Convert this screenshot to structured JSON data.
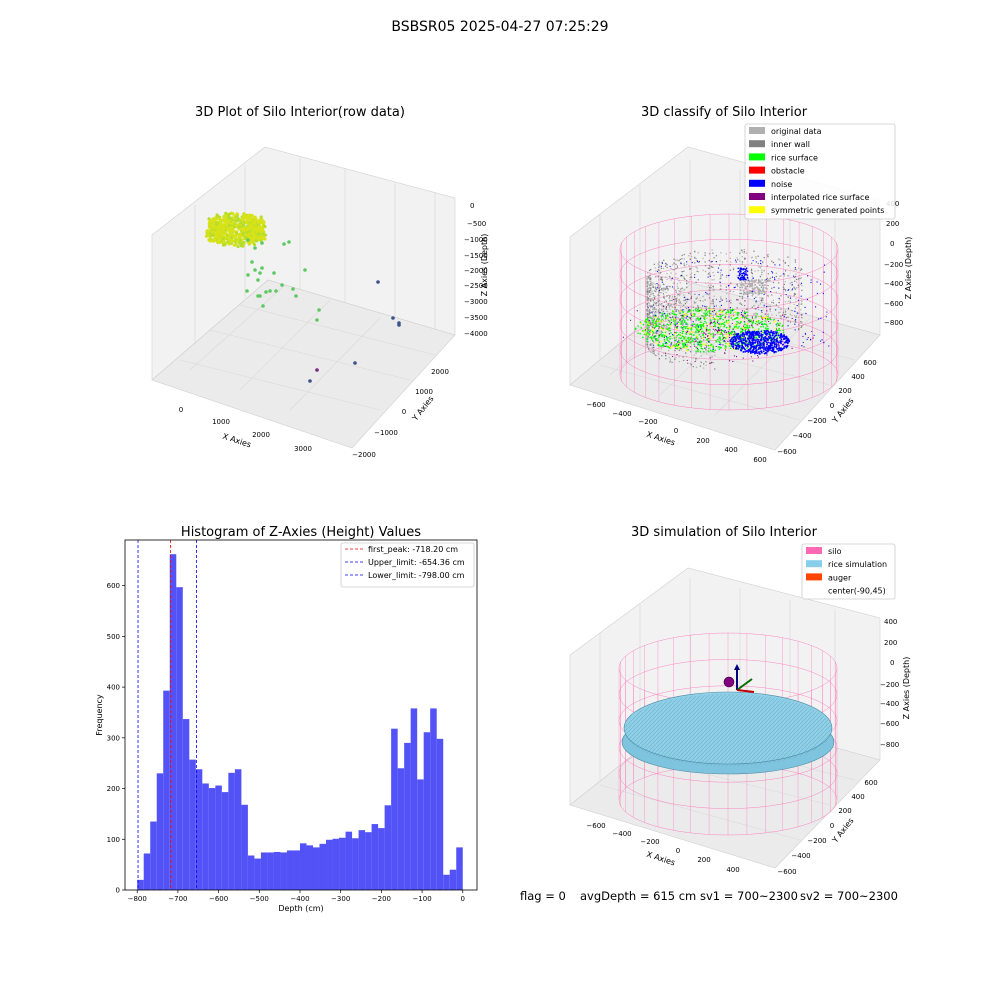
{
  "suptitle": "BSBSR05 2025-04-27 07:25:29",
  "footer": {
    "flag": "flag = 0",
    "avg": "avgDepth = 615 cm",
    "sv1": "sv1 = 700~2300",
    "sv2": "sv2 = 700~2300"
  },
  "chart_data": [
    {
      "type": "scatter",
      "panel": "3d-raw",
      "title": "3D Plot of Silo Interior(row data)",
      "xlabel": "X Axies",
      "ylabel": "Y Axies",
      "zlabel": "Z Axies (Depth)",
      "xticks": [
        "0",
        "1000",
        "2000",
        "3000"
      ],
      "yticks": [
        "2000",
        "1000",
        "0",
        "−1000",
        "−2000"
      ],
      "zticks": [
        "0",
        "−500",
        "−1000",
        "−1500",
        "−2000",
        "−2500",
        "−3000",
        "−3500",
        "−4000"
      ],
      "colors": {
        "cluster": "#d8e219",
        "scatter": "#5ec962",
        "outlier": "#3b528b",
        "accent": "#7b2882"
      }
    },
    {
      "type": "scatter",
      "panel": "3d-classify",
      "title": "3D classify of Silo Interior",
      "xlabel": "X Axies",
      "ylabel": "Y Axies",
      "zlabel": "Z Axies (Depth)",
      "xticks": [
        "−600",
        "−400",
        "−200",
        "0",
        "200",
        "400",
        "600"
      ],
      "yticks": [
        "600",
        "400",
        "200",
        "0",
        "−200",
        "−400",
        "−600"
      ],
      "zticks": [
        "200",
        "0",
        "−200",
        "−400",
        "−600",
        "−800"
      ],
      "zticks_top": "400",
      "legend": [
        {
          "label": "original data",
          "color": "#b0b0b0"
        },
        {
          "label": "inner wall",
          "color": "#808080"
        },
        {
          "label": "rice surface",
          "color": "#00ff00"
        },
        {
          "label": "obstacle",
          "color": "#ff0000"
        },
        {
          "label": "noise",
          "color": "#0000ff"
        },
        {
          "label": "interpolated rice surface",
          "color": "#800080"
        },
        {
          "label": "symmetric generated points",
          "color": "#ffff00"
        }
      ]
    },
    {
      "type": "bar",
      "panel": "histogram",
      "title": "Histogram of Z-Axies (Height) Values",
      "xlabel": "Depth (cm)",
      "ylabel": "Frequency",
      "xlim": [
        -830,
        35
      ],
      "ylim": [
        0,
        690
      ],
      "xticks": [
        -800,
        -700,
        -600,
        -500,
        -400,
        -300,
        -200,
        -100,
        0
      ],
      "yticks": [
        0,
        100,
        200,
        300,
        400,
        500,
        600
      ],
      "bin_start": -800,
      "bin_width": 16,
      "values": [
        20,
        72,
        135,
        230,
        393,
        662,
        597,
        337,
        257,
        238,
        210,
        201,
        206,
        193,
        231,
        238,
        168,
        68,
        62,
        74,
        74,
        75,
        74,
        78,
        78,
        92,
        88,
        84,
        91,
        99,
        101,
        103,
        115,
        102,
        118,
        114,
        130,
        122,
        167,
        318,
        240,
        290,
        358,
        218,
        311,
        358,
        298,
        30,
        40,
        84
      ],
      "bar_color": "#4f4ff7",
      "lines": [
        {
          "label": "first_peak: -718.20 cm",
          "x": -718.2,
          "color": "#ff0000"
        },
        {
          "label": "Upper_limit: -654.36 cm",
          "x": -654.36,
          "color": "#0000ff"
        },
        {
          "label": "Lower_limit: -798.00 cm",
          "x": -798.0,
          "color": "#0000ff"
        }
      ],
      "legend_position": "top-right"
    },
    {
      "type": "scatter",
      "panel": "3d-simulation",
      "title": "3D simulation of Silo Interior",
      "xlabel": "X Axies",
      "ylabel": "Y Axies",
      "zlabel": "Z Axies (Depth)",
      "xticks": [
        "−600",
        "−400",
        "−200",
        "0",
        "200",
        "400"
      ],
      "yticks": [
        "600",
        "400",
        "200",
        "0",
        "−200",
        "−400",
        "−600"
      ],
      "zticks": [
        "400",
        "200",
        "0",
        "−200",
        "−400",
        "−600",
        "−800"
      ],
      "legend": [
        {
          "label": "silo",
          "color": "#ff69b4"
        },
        {
          "label": "rice simulation",
          "color": "#87ceeb"
        },
        {
          "label": "auger",
          "color": "#ff4500"
        },
        {
          "label": "center(-90,45)",
          "color": "#ffffff"
        }
      ]
    }
  ]
}
